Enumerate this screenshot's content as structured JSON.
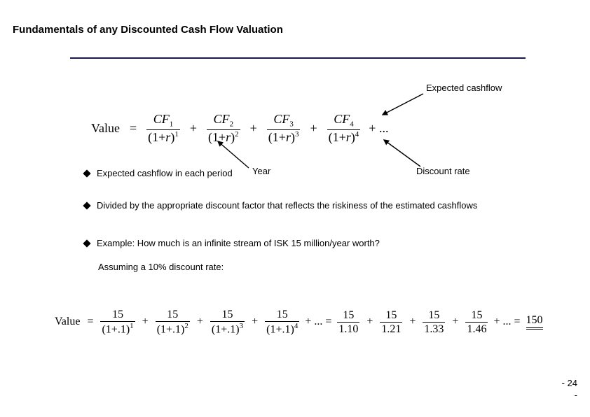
{
  "title": "Fundamentals of any Discounted Cash Flow Valuation",
  "labels": {
    "expected_cashflow": "Expected cashflow",
    "year": "Year",
    "discount_rate": "Discount rate"
  },
  "formula1": {
    "lhs": "Value",
    "terms": [
      {
        "num_label": "CF",
        "num_sub": "1",
        "den_base": "(1+r)",
        "den_sup": "1"
      },
      {
        "num_label": "CF",
        "num_sub": "2",
        "den_base": "(1+r)",
        "den_sup": "2"
      },
      {
        "num_label": "CF",
        "num_sub": "3",
        "den_base": "(1+r)",
        "den_sup": "3"
      },
      {
        "num_label": "CF",
        "num_sub": "4",
        "den_base": "(1+r)",
        "den_sup": "4"
      }
    ],
    "trailing": "+ ..."
  },
  "bullets": {
    "b1": "Expected cashflow in each period",
    "b2": "Divided by the appropriate discount factor that reflects the riskiness of the estimated cashflows",
    "b3": "Example: How much is an infinite stream of ISK 15 million/year worth?",
    "b3_sub": "Assuming a 10% discount rate:"
  },
  "formula2": {
    "lhs": "Value",
    "terms_a": [
      {
        "num": "15",
        "den_base": "(1+.1)",
        "den_sup": "1"
      },
      {
        "num": "15",
        "den_base": "(1+.1)",
        "den_sup": "2"
      },
      {
        "num": "15",
        "den_base": "(1+.1)",
        "den_sup": "3"
      },
      {
        "num": "15",
        "den_base": "(1+.1)",
        "den_sup": "4"
      }
    ],
    "mid": "+ ... =",
    "terms_b": [
      {
        "num": "15",
        "den": "1.10"
      },
      {
        "num": "15",
        "den": "1.21"
      },
      {
        "num": "15",
        "den": "1.33"
      },
      {
        "num": "15",
        "den": "1.46"
      }
    ],
    "tail_plus": "+ ... =",
    "result": "150"
  },
  "page": {
    "line1": "- 24",
    "line2": "-"
  }
}
